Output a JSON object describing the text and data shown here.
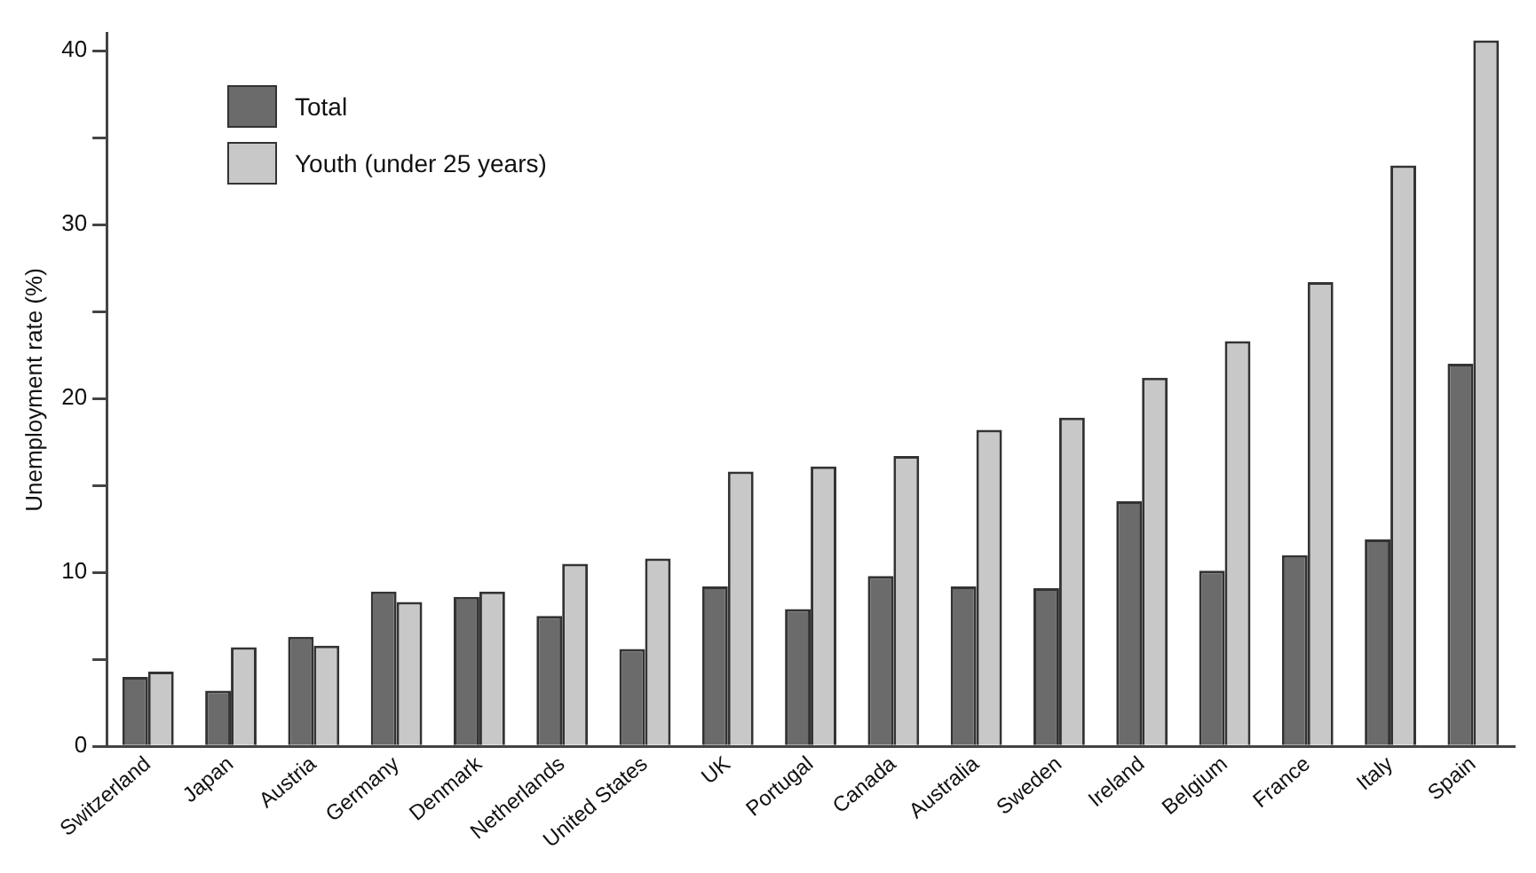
{
  "chart_data": {
    "type": "bar",
    "ylabel": "Unemployment rate (%)",
    "categories": [
      "Switzerland",
      "Japan",
      "Austria",
      "Germany",
      "Denmark",
      "Netherlands",
      "United States",
      "UK",
      "Portugal",
      "Canada",
      "Australia",
      "Sweden",
      "Ireland",
      "Belgium",
      "France",
      "Italy",
      "Spain"
    ],
    "series": [
      {
        "name": "Total",
        "color": "#6b6b6b",
        "values": [
          4.0,
          3.2,
          6.3,
          8.9,
          8.6,
          7.5,
          5.6,
          9.2,
          7.9,
          9.8,
          9.2,
          9.1,
          14.1,
          10.1,
          11.0,
          11.9,
          22.0
        ]
      },
      {
        "name": "Youth (under 25 years)",
        "color": "#c8c8c8",
        "values": [
          4.3,
          5.7,
          5.8,
          8.3,
          8.9,
          10.5,
          10.8,
          15.8,
          16.1,
          16.7,
          18.2,
          18.9,
          21.2,
          23.3,
          26.7,
          33.4,
          40.6
        ]
      }
    ],
    "ylim": [
      0,
      41
    ],
    "yticks": [
      0,
      {
        "value": 5,
        "label": null
      },
      10,
      {
        "value": 15,
        "label": null
      },
      20,
      {
        "value": 25,
        "label": null
      },
      30,
      {
        "value": 35,
        "label": null
      },
      40
    ],
    "legend": "top left"
  }
}
